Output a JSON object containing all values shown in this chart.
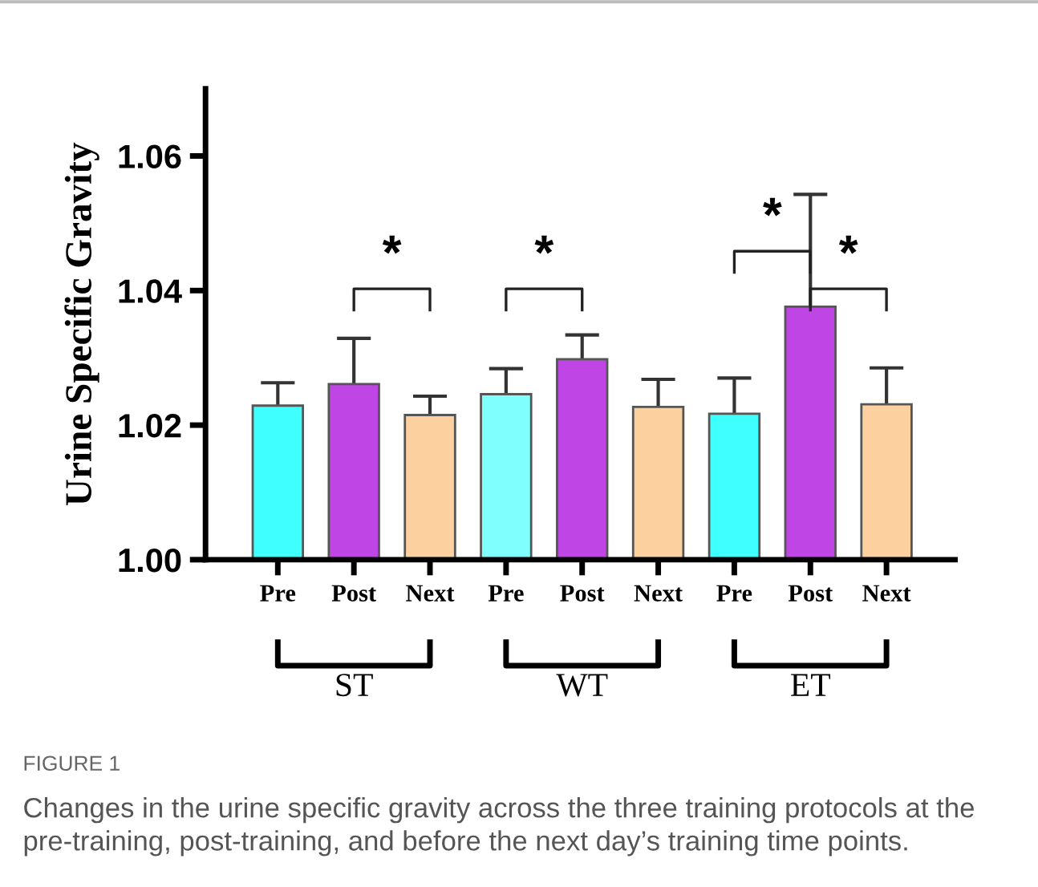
{
  "chart_data": {
    "type": "bar",
    "ylabel": "Urine Specific Gravity",
    "categories": [
      "Pre",
      "Post",
      "Next",
      "Pre",
      "Post",
      "Next",
      "Pre",
      "Post",
      "Next"
    ],
    "values": [
      1.0229,
      1.0261,
      1.0215,
      1.0246,
      1.0298,
      1.0227,
      1.0217,
      1.0376,
      1.0231
    ],
    "errors": [
      [
        1.0229,
        1.0263
      ],
      [
        1.0261,
        1.0329
      ],
      [
        1.0215,
        1.0243
      ],
      [
        1.0246,
        1.0284
      ],
      [
        1.0298,
        1.0334
      ],
      [
        1.0227,
        1.0268
      ],
      [
        1.0217,
        1.027
      ],
      [
        1.0376,
        1.0543
      ],
      [
        1.0231,
        1.0285
      ]
    ],
    "colors": [
      "#40ffff",
      "#c045e5",
      "#fdd0a0",
      "#80ffff",
      "#c045e5",
      "#fdd0a0",
      "#40ffff",
      "#c045e5",
      "#fdd0a0"
    ],
    "ylim": [
      1.0,
      1.07
    ],
    "yticks": [
      {
        "value": 1.0,
        "label": "1.00"
      },
      {
        "value": 1.02,
        "label": "1.02"
      },
      {
        "value": 1.04,
        "label": "1.04"
      },
      {
        "value": 1.06,
        "label": "1.06"
      }
    ],
    "grid": false,
    "legend": false,
    "annotations": [
      "ST",
      "WT",
      "ET",
      "*",
      "*",
      "*",
      "*",
      "FIGURE 1",
      "Changes in the urine specific gravity across the three training protocols at the pre-training, post-training, and before the next day’s training time points."
    ]
  }
}
